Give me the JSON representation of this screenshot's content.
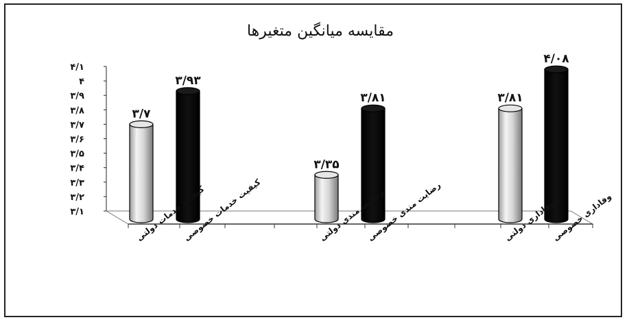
{
  "chart_data": {
    "type": "bar",
    "title": "مقایسه میانگین متغیرها",
    "ylim": [
      3.1,
      4.1
    ],
    "y_tick_labels": [
      "۳/۱",
      "۳/۲",
      "۳/۳",
      "۳/۴",
      "۳/۵",
      "۳/۶",
      "۳/۷",
      "۳/۸",
      "۳/۹",
      "۴",
      "۴/۱"
    ],
    "categories": [
      "کیفیت خدمات دولتی",
      "کیفیت خدمات خصوصی",
      "رضایت مندی دولتی",
      "رضایت مندی خصوصی",
      "وفاداری دولتی",
      "وفاداری خصوصی"
    ],
    "values": [
      3.7,
      3.93,
      3.35,
      3.81,
      3.81,
      4.08
    ],
    "value_labels": [
      "۳/۷",
      "۳/۹۳",
      "۳/۳۵",
      "۳/۸۱",
      "۳/۸۱",
      "۴/۰۸"
    ],
    "bar_colors": [
      "#d8d8d8",
      "#000000",
      "#d8d8d8",
      "#000000",
      "#d8d8d8",
      "#000000"
    ],
    "grid": false,
    "legend": "none"
  }
}
